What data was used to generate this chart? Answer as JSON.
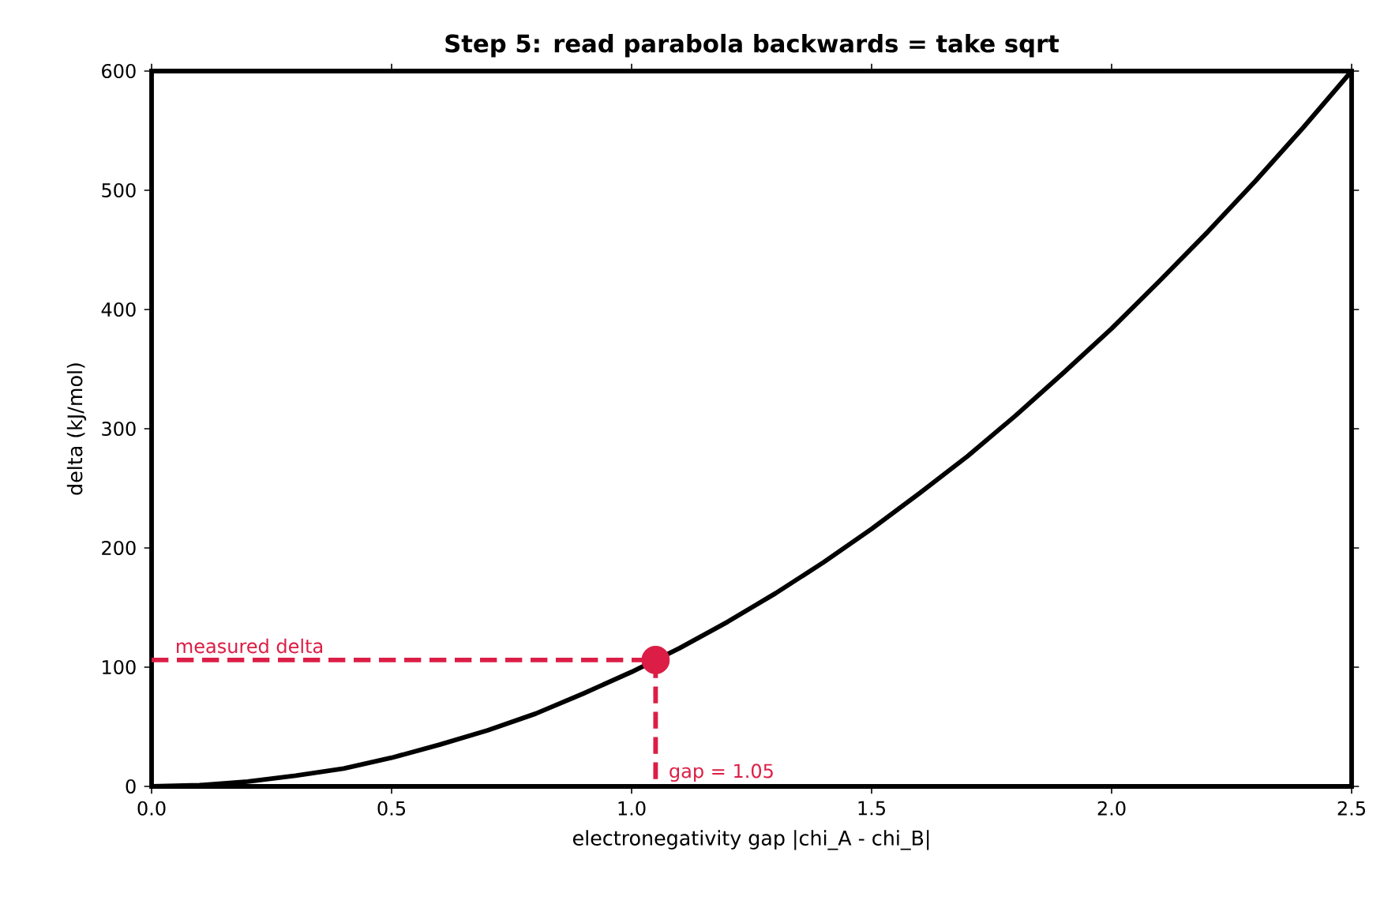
{
  "chart_data": {
    "type": "line",
    "title": "Step 5: read parabola backwards = take sqrt",
    "xlabel": "electronegativity gap |chi_A - chi_B|",
    "ylabel": "delta (kJ/mol)",
    "xlim": [
      0,
      2.5
    ],
    "ylim": [
      0,
      600
    ],
    "xticks": [
      {
        "value": 0,
        "label": "0.0"
      },
      0.5,
      {
        "value": 1,
        "label": "1.0"
      },
      1.5,
      {
        "value": 2,
        "label": "2.0"
      },
      2.5
    ],
    "yticks": [
      0,
      100,
      200,
      300,
      400,
      500,
      600
    ],
    "grid": false,
    "series": [
      {
        "color": "#000000",
        "line_style": "solid",
        "marker": "none",
        "x": [
          0,
          0.1,
          0.2,
          0.3,
          0.4,
          0.5,
          0.6,
          0.7,
          0.8,
          0.9,
          1.0,
          1.1,
          1.2,
          1.3,
          1.4,
          1.5,
          1.6,
          1.7,
          1.8,
          1.9,
          2.0,
          2.1,
          2.2,
          2.3,
          2.4,
          2.5
        ],
        "values": [
          0,
          1,
          4,
          9,
          15,
          24,
          35,
          47,
          61,
          78,
          96,
          116,
          138,
          162,
          188,
          216,
          246,
          277,
          311,
          347,
          384,
          424,
          465,
          508,
          553,
          600
        ]
      },
      {
        "color": "#dc1e46",
        "line_style": "dashed",
        "marker": "none",
        "x": [
          0,
          1.05,
          1.05
        ],
        "values": [
          106,
          106,
          0
        ]
      },
      {
        "type": "scatter",
        "color": "#dc1e46",
        "marker": "circle",
        "x": [
          1.05
        ],
        "values": [
          106
        ]
      }
    ],
    "annotations": [
      "measured delta",
      "gap = 1.05"
    ]
  }
}
